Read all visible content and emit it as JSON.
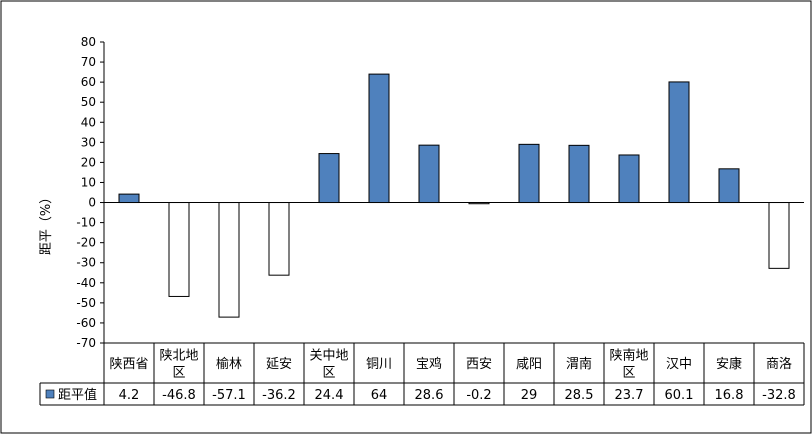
{
  "chart_data": {
    "type": "bar",
    "ylabel": "距平（%）",
    "ylim": [
      -70,
      80
    ],
    "yticks": [
      80,
      70,
      60,
      50,
      40,
      30,
      20,
      10,
      0,
      -10,
      -20,
      -30,
      -40,
      -50,
      -60,
      -70
    ],
    "categories": [
      [
        "陕西省"
      ],
      [
        "陕北地",
        "区"
      ],
      [
        "榆林"
      ],
      [
        "延安"
      ],
      [
        "关中地",
        "区"
      ],
      [
        "铜川"
      ],
      [
        "宝鸡"
      ],
      [
        "西安"
      ],
      [
        "咸阳"
      ],
      [
        "渭南"
      ],
      [
        "陕南地",
        "区"
      ],
      [
        "汉中"
      ],
      [
        "安康"
      ],
      [
        "商洛"
      ]
    ],
    "series": [
      {
        "name": "距平值",
        "values": [
          4.2,
          -46.8,
          -57.1,
          -36.2,
          24.4,
          64,
          28.6,
          -0.2,
          29,
          28.5,
          23.7,
          60.1,
          16.8,
          -32.8
        ],
        "labels": [
          "4.2",
          "-46.8",
          "-57.1",
          "-36.2",
          "24.4",
          "64",
          "28.6",
          "-0.2",
          "29",
          "28.5",
          "23.7",
          "60.1",
          "16.8",
          "-32.8"
        ]
      }
    ],
    "colors": {
      "positive": "#4f81bd",
      "negative": "#ffffff",
      "stroke": "#000000"
    }
  }
}
